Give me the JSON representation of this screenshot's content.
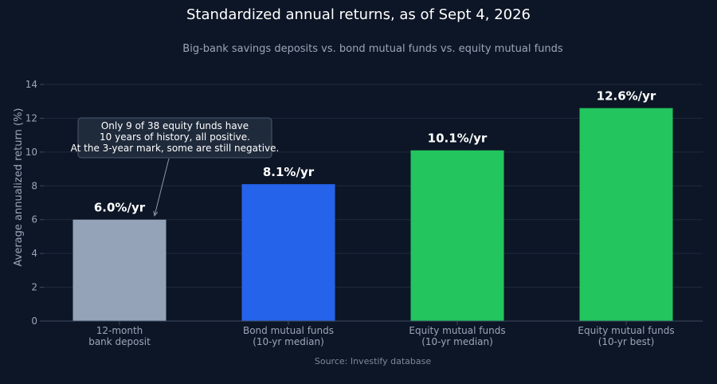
{
  "chart_data": {
    "type": "bar",
    "title": "Standardized annual returns, as of Sept 4, 2026",
    "subtitle": "Big-bank savings deposits vs. bond mutual funds vs. equity mutual funds",
    "ylabel": "Average annualized return (%)",
    "xlabel": "",
    "ylim": [
      0,
      14
    ],
    "yticks": [
      0,
      2,
      4,
      6,
      8,
      10,
      12,
      14
    ],
    "grid": true,
    "categories": [
      {
        "line1": "12-month",
        "line2": "bank deposit"
      },
      {
        "line1": "Bond mutual funds",
        "line2": "(10-yr median)"
      },
      {
        "line1": "Equity mutual funds",
        "line2": "(10-yr median)"
      },
      {
        "line1": "Equity mutual funds",
        "line2": "(10-yr best)"
      }
    ],
    "values": [
      6.0,
      8.1,
      10.1,
      12.6
    ],
    "value_labels": [
      "6.0%/yr",
      "8.1%/yr",
      "10.1%/yr",
      "12.6%/yr"
    ],
    "bar_colors": [
      "#94a3b8",
      "#2563eb",
      "#22c55e",
      "#22c55e"
    ],
    "annotation": {
      "lines": [
        "Only 9 of 38 equity funds have",
        "10 years of history, all positive.",
        "At the 3-year mark, some are still negative."
      ],
      "points_to_category_index": 0
    },
    "source": "Source: Investify database"
  },
  "colors": {
    "background": "#0d1626",
    "text_primary": "#ffffff",
    "text_secondary": "#9aa6b8",
    "grid": "#1e2a3c",
    "axis": "#3b4a5e"
  }
}
